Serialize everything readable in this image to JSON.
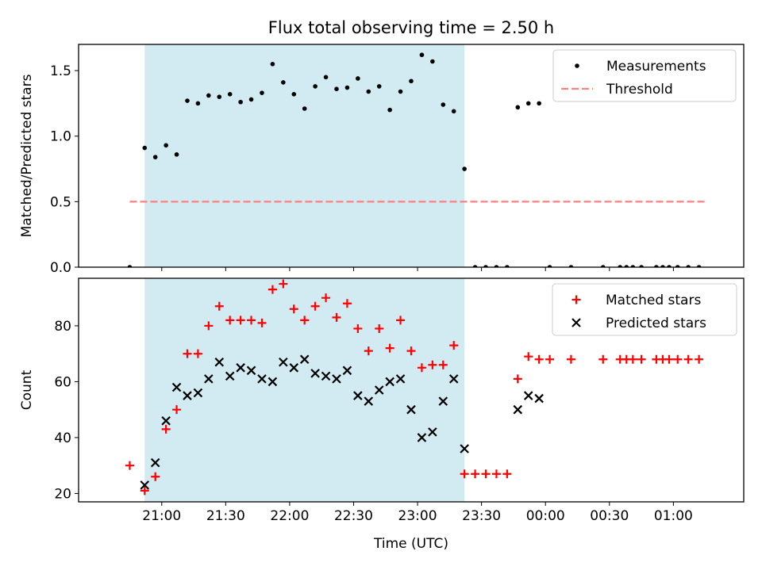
{
  "title": "Flux total observing time = 2.50 h",
  "xlabel": "Time (UTC)",
  "x_tick_labels": [
    "21:00",
    "21:30",
    "22:00",
    "22:30",
    "23:00",
    "23:30",
    "00:00",
    "00:30",
    "01:00"
  ],
  "colors": {
    "shaded": "#add8e6",
    "measurements": "#000000",
    "threshold": "#ff7f7f",
    "matched": "#ff0000",
    "predicted": "#000000"
  },
  "chart_data": [
    {
      "type": "scatter",
      "ylabel": "Matched/Predicted stars",
      "ylim": [
        0,
        1.7
      ],
      "y_ticks": [
        0.0,
        0.5,
        1.0,
        1.5
      ],
      "y_tick_labels": [
        "0.0",
        "0.5",
        "1.0",
        "1.5"
      ],
      "legend_position": "top-right",
      "legend": [
        "Measurements",
        "Threshold"
      ],
      "shaded_interval": [
        "20:52",
        "23:22"
      ],
      "threshold": {
        "name": "Threshold",
        "y": 0.5,
        "x_range": [
          "20:45",
          "01:15"
        ]
      },
      "series": [
        {
          "name": "Measurements",
          "x": [
            "20:45",
            "20:52",
            "20:57",
            "21:02",
            "21:07",
            "21:12",
            "21:17",
            "21:22",
            "21:27",
            "21:32",
            "21:37",
            "21:42",
            "21:47",
            "21:52",
            "21:57",
            "22:02",
            "22:07",
            "22:12",
            "22:17",
            "22:22",
            "22:27",
            "22:32",
            "22:37",
            "22:42",
            "22:47",
            "22:52",
            "22:57",
            "23:02",
            "23:07",
            "23:12",
            "23:17",
            "23:22",
            "23:27",
            "23:32",
            "23:37",
            "23:42",
            "23:47",
            "23:52",
            "23:57",
            "00:02",
            "00:12",
            "00:27",
            "00:35",
            "00:38",
            "00:41",
            "00:45",
            "00:52",
            "00:55",
            "00:58",
            "01:02",
            "01:07",
            "01:12"
          ],
          "y": [
            0.0,
            0.91,
            0.84,
            0.93,
            0.86,
            1.27,
            1.25,
            1.31,
            1.3,
            1.32,
            1.26,
            1.28,
            1.33,
            1.55,
            1.41,
            1.32,
            1.21,
            1.38,
            1.45,
            1.36,
            1.37,
            1.44,
            1.34,
            1.38,
            1.2,
            1.34,
            1.42,
            1.62,
            1.57,
            1.24,
            1.19,
            0.75,
            0.0,
            0.0,
            0.0,
            0.0,
            1.22,
            1.25,
            1.25,
            0.0,
            0.0,
            0.0,
            0.0,
            0.0,
            0.0,
            0.0,
            0.0,
            0.0,
            0.0,
            0.0,
            0.0,
            0.0
          ]
        }
      ]
    },
    {
      "type": "scatter",
      "ylabel": "Count",
      "ylim": [
        17,
        97
      ],
      "y_ticks": [
        20,
        40,
        60,
        80
      ],
      "y_tick_labels": [
        "20",
        "40",
        "60",
        "80"
      ],
      "legend_position": "top-right",
      "legend": [
        "Matched stars",
        "Predicted stars"
      ],
      "shaded_interval": [
        "20:52",
        "23:22"
      ],
      "series": [
        {
          "name": "Matched stars",
          "x": [
            "20:45",
            "20:52",
            "20:57",
            "21:02",
            "21:07",
            "21:12",
            "21:17",
            "21:22",
            "21:27",
            "21:32",
            "21:37",
            "21:42",
            "21:47",
            "21:52",
            "21:57",
            "22:02",
            "22:07",
            "22:12",
            "22:17",
            "22:22",
            "22:27",
            "22:32",
            "22:37",
            "22:42",
            "22:47",
            "22:52",
            "22:57",
            "23:02",
            "23:07",
            "23:12",
            "23:17",
            "23:22",
            "23:27",
            "23:32",
            "23:37",
            "23:42",
            "23:47",
            "23:52",
            "23:57",
            "00:02",
            "00:12",
            "00:27",
            "00:35",
            "00:38",
            "00:41",
            "00:45",
            "00:52",
            "00:55",
            "00:58",
            "01:02",
            "01:07",
            "01:12"
          ],
          "y": [
            30,
            21,
            26,
            43,
            50,
            70,
            70,
            80,
            87,
            82,
            82,
            82,
            81,
            93,
            95,
            86,
            82,
            87,
            90,
            83,
            88,
            79,
            71,
            79,
            72,
            82,
            71,
            65,
            66,
            66,
            73,
            27,
            27,
            27,
            27,
            27,
            61,
            69,
            68,
            68,
            68,
            68,
            68,
            68,
            68,
            68,
            68,
            68,
            68,
            68,
            68,
            68
          ]
        },
        {
          "name": "Predicted stars",
          "x": [
            "20:52",
            "20:57",
            "21:02",
            "21:07",
            "21:12",
            "21:17",
            "21:22",
            "21:27",
            "21:32",
            "21:37",
            "21:42",
            "21:47",
            "21:52",
            "21:57",
            "22:02",
            "22:07",
            "22:12",
            "22:17",
            "22:22",
            "22:27",
            "22:32",
            "22:37",
            "22:42",
            "22:47",
            "22:52",
            "22:57",
            "23:02",
            "23:07",
            "23:12",
            "23:17",
            "23:22",
            "23:47",
            "23:52",
            "23:57"
          ],
          "y": [
            23,
            31,
            46,
            58,
            55,
            56,
            61,
            67,
            62,
            65,
            64,
            61,
            60,
            67,
            65,
            68,
            63,
            62,
            61,
            64,
            55,
            53,
            57,
            60,
            61,
            50,
            40,
            42,
            53,
            61,
            36,
            50,
            55,
            54
          ]
        }
      ]
    }
  ]
}
